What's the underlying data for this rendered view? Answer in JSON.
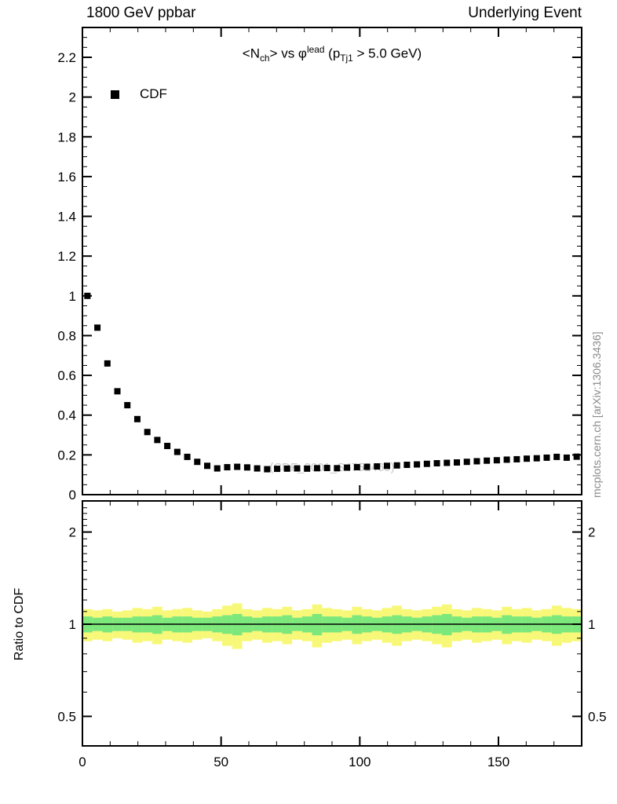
{
  "header": {
    "left": "1800 GeV ppbar",
    "right": "Underlying Event"
  },
  "plot": {
    "title_parts": {
      "t1": "<N",
      "t1sub": "ch",
      "t2": "> vs ",
      "t3": "φ",
      "t3sup": "lead",
      "t4": " (p",
      "t4sub": "Tj1",
      "t5": " > 5.0 GeV)"
    },
    "legend_label": "CDF",
    "watermark": "(CDF_2001_S4751469)",
    "side_caption": "mcplots.cern.ch [arXiv:1306.3436]"
  },
  "ratio": {
    "ylabel": "Ratio to CDF"
  },
  "colors": {
    "marker": "#000000",
    "band_yellow": "#f8f878",
    "band_green": "#7ce87c",
    "baseline": "#000000",
    "watermark": "#c8c8c8",
    "caption": "#8a8a8a"
  },
  "chart_data": {
    "type": "scatter",
    "title": "<N_ch> vs phi^lead (p_Tj1 > 5.0 GeV)",
    "xlabel": "",
    "ylabel": "",
    "xlim": [
      0,
      180
    ],
    "ylim": [
      0,
      2.35
    ],
    "xticks": {
      "values": [
        0,
        50,
        100,
        150
      ],
      "labels": [
        "0",
        "50",
        "100",
        "150"
      ],
      "minor_step": 10
    },
    "yticks_main": {
      "values": [
        0,
        0.2,
        0.4,
        0.6,
        0.8,
        1.0,
        1.2,
        1.4,
        1.6,
        1.8,
        2.0,
        2.2
      ],
      "labels": [
        "0",
        "0.2",
        "0.4",
        "0.6",
        "0.8",
        "1",
        "1.2",
        "1.4",
        "1.6",
        "1.8",
        "2",
        "2.2"
      ],
      "minor_step": 0.05
    },
    "series": [
      {
        "name": "CDF",
        "marker": "square",
        "x": [
          1.8,
          5.4,
          9.0,
          12.6,
          16.2,
          19.8,
          23.4,
          27.0,
          30.6,
          34.2,
          37.8,
          41.4,
          45.0,
          48.6,
          52.2,
          55.8,
          59.4,
          63.0,
          66.6,
          70.2,
          73.8,
          77.4,
          81.0,
          84.6,
          88.2,
          91.8,
          95.4,
          99.0,
          102.6,
          106.2,
          109.8,
          113.4,
          117.0,
          120.6,
          124.2,
          127.8,
          131.4,
          135.0,
          138.6,
          142.2,
          145.8,
          149.4,
          153.0,
          156.6,
          160.2,
          163.8,
          167.4,
          171.0,
          174.6,
          178.2
        ],
        "y": [
          1.0,
          0.84,
          0.66,
          0.52,
          0.45,
          0.38,
          0.315,
          0.275,
          0.245,
          0.215,
          0.19,
          0.165,
          0.145,
          0.132,
          0.138,
          0.14,
          0.137,
          0.132,
          0.128,
          0.13,
          0.131,
          0.132,
          0.131,
          0.133,
          0.134,
          0.133,
          0.136,
          0.138,
          0.14,
          0.142,
          0.145,
          0.147,
          0.15,
          0.152,
          0.155,
          0.158,
          0.16,
          0.162,
          0.165,
          0.168,
          0.171,
          0.173,
          0.176,
          0.178,
          0.181,
          0.183,
          0.186,
          0.19,
          0.186,
          0.191
        ]
      }
    ],
    "ratio_panel": {
      "yscale": "log",
      "ylim": [
        0.4,
        2.5
      ],
      "yticks": {
        "values": [
          0.5,
          1,
          2
        ],
        "labels": [
          "0.5",
          "1",
          "2"
        ]
      },
      "yticks_minor": [
        0.4,
        0.6,
        0.7,
        0.8,
        0.9,
        1.1,
        1.2,
        1.3,
        1.4,
        1.5,
        1.6,
        1.7,
        1.8,
        1.9,
        2.1,
        2.2,
        2.3,
        2.4
      ],
      "baseline": 1,
      "bands": {
        "yellow_halfwidth": [
          0.12,
          0.11,
          0.12,
          0.1,
          0.11,
          0.13,
          0.12,
          0.14,
          0.11,
          0.12,
          0.13,
          0.11,
          0.1,
          0.12,
          0.15,
          0.17,
          0.12,
          0.11,
          0.13,
          0.12,
          0.14,
          0.11,
          0.12,
          0.16,
          0.13,
          0.12,
          0.11,
          0.14,
          0.12,
          0.11,
          0.13,
          0.15,
          0.12,
          0.11,
          0.12,
          0.14,
          0.16,
          0.12,
          0.11,
          0.13,
          0.12,
          0.11,
          0.14,
          0.12,
          0.13,
          0.11,
          0.12,
          0.15,
          0.13,
          0.12
        ],
        "green_halfwidth": [
          0.06,
          0.05,
          0.06,
          0.05,
          0.05,
          0.06,
          0.06,
          0.07,
          0.05,
          0.06,
          0.06,
          0.05,
          0.05,
          0.06,
          0.07,
          0.08,
          0.06,
          0.05,
          0.06,
          0.06,
          0.07,
          0.05,
          0.06,
          0.08,
          0.06,
          0.06,
          0.05,
          0.07,
          0.06,
          0.05,
          0.06,
          0.07,
          0.06,
          0.05,
          0.06,
          0.07,
          0.08,
          0.06,
          0.05,
          0.06,
          0.06,
          0.05,
          0.07,
          0.06,
          0.06,
          0.05,
          0.06,
          0.07,
          0.06,
          0.06
        ]
      }
    }
  }
}
